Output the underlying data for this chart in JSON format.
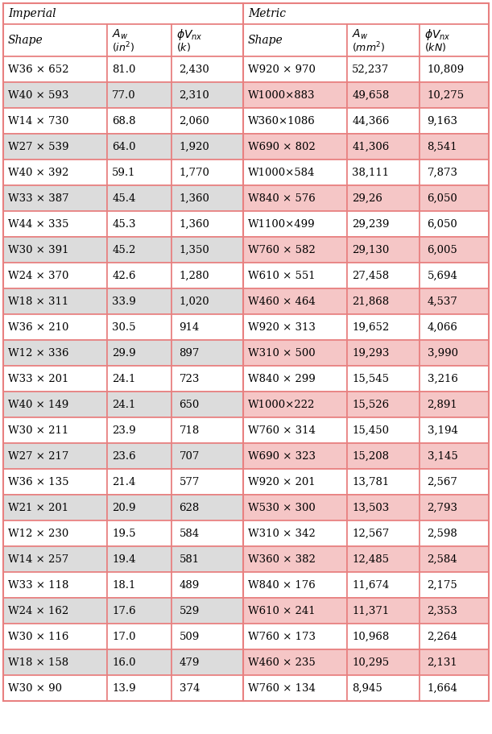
{
  "rows": [
    [
      "W36 × 652",
      "81.0",
      "2,430",
      "W920 × 970",
      "52,237",
      "10,809"
    ],
    [
      "W40 × 593",
      "77.0",
      "2,310",
      "W1000×883",
      "49,658",
      "10,275"
    ],
    [
      "W14 × 730",
      "68.8",
      "2,060",
      "W360×1086",
      "44,366",
      "9,163"
    ],
    [
      "W27 × 539",
      "64.0",
      "1,920",
      "W690 × 802",
      "41,306",
      "8,541"
    ],
    [
      "W40 × 392",
      "59.1",
      "1,770",
      "W1000×584",
      "38,111",
      "7,873"
    ],
    [
      "W33 × 387",
      "45.4",
      "1,360",
      "W840 × 576",
      "29,26",
      "6,050"
    ],
    [
      "W44 × 335",
      "45.3",
      "1,360",
      "W1100×499",
      "29,239",
      "6,050"
    ],
    [
      "W30 × 391",
      "45.2",
      "1,350",
      "W760 × 582",
      "29,130",
      "6,005"
    ],
    [
      "W24 × 370",
      "42.6",
      "1,280",
      "W610 × 551",
      "27,458",
      "5,694"
    ],
    [
      "W18 × 311",
      "33.9",
      "1,020",
      "W460 × 464",
      "21,868",
      "4,537"
    ],
    [
      "W36 × 210",
      "30.5",
      "914",
      "W920 × 313",
      "19,652",
      "4,066"
    ],
    [
      "W12 × 336",
      "29.9",
      "897",
      "W310 × 500",
      "19,293",
      "3,990"
    ],
    [
      "W33 × 201",
      "24.1",
      "723",
      "W840 × 299",
      "15,545",
      "3,216"
    ],
    [
      "W40 × 149",
      "24.1",
      "650",
      "W1000×222",
      "15,526",
      "2,891"
    ],
    [
      "W30 × 211",
      "23.9",
      "718",
      "W760 × 314",
      "15,450",
      "3,194"
    ],
    [
      "W27 × 217",
      "23.6",
      "707",
      "W690 × 323",
      "15,208",
      "3,145"
    ],
    [
      "W36 × 135",
      "21.4",
      "577",
      "W920 × 201",
      "13,781",
      "2,567"
    ],
    [
      "W21 × 201",
      "20.9",
      "628",
      "W530 × 300",
      "13,503",
      "2,793"
    ],
    [
      "W12 × 230",
      "19.5",
      "584",
      "W310 × 342",
      "12,567",
      "2,598"
    ],
    [
      "W14 × 257",
      "19.4",
      "581",
      "W360 × 382",
      "12,485",
      "2,584"
    ],
    [
      "W33 × 118",
      "18.1",
      "489",
      "W840 × 176",
      "11,674",
      "2,175"
    ],
    [
      "W24 × 162",
      "17.6",
      "529",
      "W610 × 241",
      "11,371",
      "2,353"
    ],
    [
      "W30 × 116",
      "17.0",
      "509",
      "W760 × 173",
      "10,968",
      "2,264"
    ],
    [
      "W18 × 158",
      "16.0",
      "479",
      "W460 × 235",
      "10,295",
      "2,131"
    ],
    [
      "W30 × 90",
      "13.9",
      "374",
      "W760 × 134",
      "8,945",
      "1,664"
    ]
  ],
  "color_imp_gray": "#dcdcdc",
  "color_met_pink": "#f5c6c6",
  "color_white": "#ffffff",
  "color_border": "#e88080",
  "border_lw": 1.2,
  "fig_w": 6.11,
  "fig_h": 9.11,
  "dpi": 100
}
